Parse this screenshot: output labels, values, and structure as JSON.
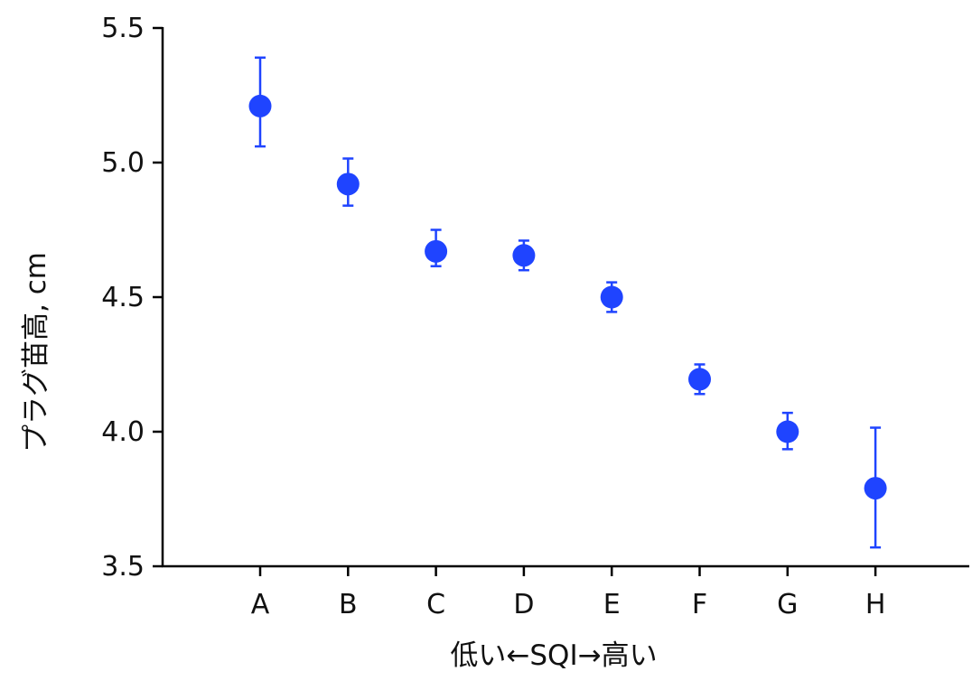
{
  "chart_data": {
    "type": "scatter",
    "categories": [
      "A",
      "B",
      "C",
      "D",
      "E",
      "F",
      "G",
      "H"
    ],
    "values": [
      5.21,
      4.92,
      4.67,
      4.655,
      4.5,
      4.195,
      4.0,
      3.79
    ],
    "error_low": [
      5.06,
      4.84,
      4.615,
      4.6,
      4.445,
      4.14,
      3.935,
      3.57
    ],
    "error_high": [
      5.39,
      5.015,
      4.75,
      4.71,
      4.555,
      4.25,
      4.07,
      4.015
    ],
    "ylim": [
      3.5,
      5.5
    ],
    "yticks": [
      "3.5",
      "4.0",
      "4.5",
      "5.0",
      "5.5"
    ],
    "xlabel": "低い←SQI→高い",
    "ylabel": "プラグ苗高, cm",
    "grid": false,
    "color": "#1f44ff"
  }
}
